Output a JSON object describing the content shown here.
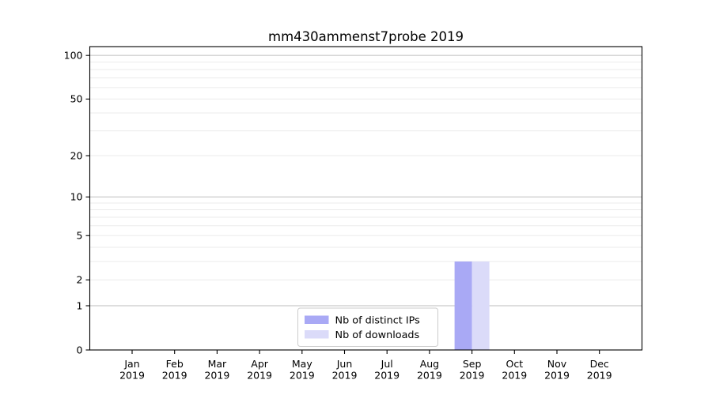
{
  "figure": {
    "title": "mm430ammenst7probe 2019"
  },
  "chart_data": {
    "type": "bar",
    "title": "mm430ammenst7probe 2019",
    "xlabel": "",
    "ylabel": "",
    "categories": [
      "Jan 2019",
      "Feb 2019",
      "Mar 2019",
      "Apr 2019",
      "May 2019",
      "Jun 2019",
      "Jul 2019",
      "Aug 2019",
      "Sep 2019",
      "Oct 2019",
      "Nov 2019",
      "Dec 2019"
    ],
    "series": [
      {
        "name": "Nb of distinct IPs",
        "color": "#a9a9f5",
        "values": [
          0,
          0,
          0,
          0,
          0,
          0,
          0,
          0,
          3,
          0,
          0,
          0
        ]
      },
      {
        "name": "Nb of downloads",
        "color": "#dbdbf9",
        "values": [
          0,
          0,
          0,
          0,
          0,
          0,
          0,
          0,
          3,
          0,
          0,
          0
        ]
      }
    ],
    "yscale": "log1p",
    "yticks": [
      0,
      1,
      2,
      5,
      10,
      20,
      50,
      100
    ],
    "ylim": [
      0,
      115
    ],
    "grid": {
      "major_values": [
        1,
        10,
        100
      ],
      "minor_values": [
        2,
        3,
        4,
        5,
        6,
        7,
        8,
        9,
        20,
        30,
        40,
        50,
        60,
        70,
        80,
        90
      ],
      "major_color": "#bdbdbd",
      "minor_color": "#ebebeb"
    },
    "legend": {
      "position": "lower center"
    },
    "axis_color": "#000000"
  }
}
